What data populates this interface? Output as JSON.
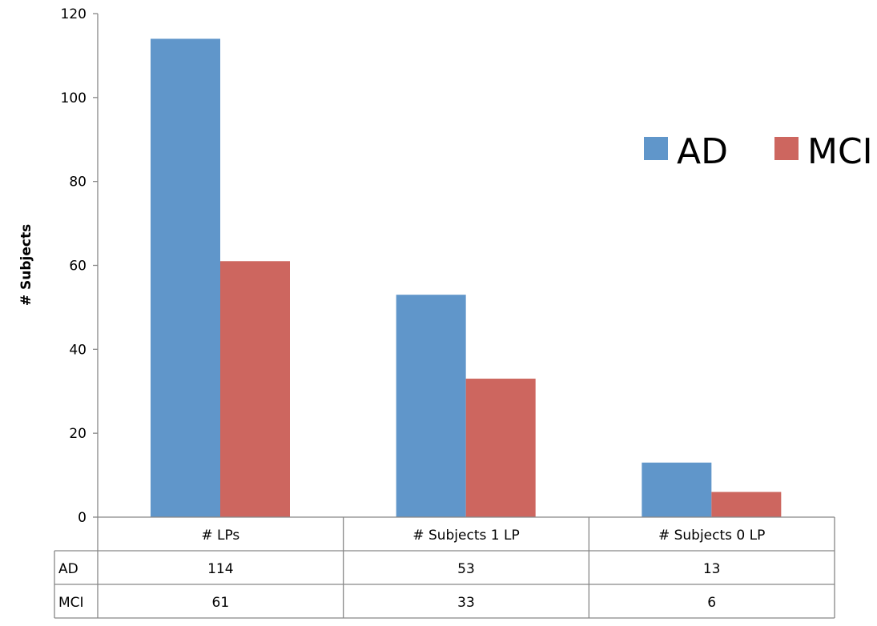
{
  "chart_data": {
    "type": "bar",
    "title": "",
    "xlabel": "",
    "ylabel": "# Subjects",
    "ylim": [
      0,
      120
    ],
    "yticks": [
      0,
      20,
      40,
      60,
      80,
      100,
      120
    ],
    "categories": [
      "# LPs",
      "# Subjects 1 LP",
      "# Subjects 0 LP"
    ],
    "series": [
      {
        "name": "AD",
        "values": [
          114,
          53,
          13
        ],
        "color": "#6096CA"
      },
      {
        "name": "MCI",
        "values": [
          61,
          33,
          6
        ],
        "color": "#CD665F"
      }
    ],
    "grid": false,
    "legend": "right",
    "data_table": true
  }
}
